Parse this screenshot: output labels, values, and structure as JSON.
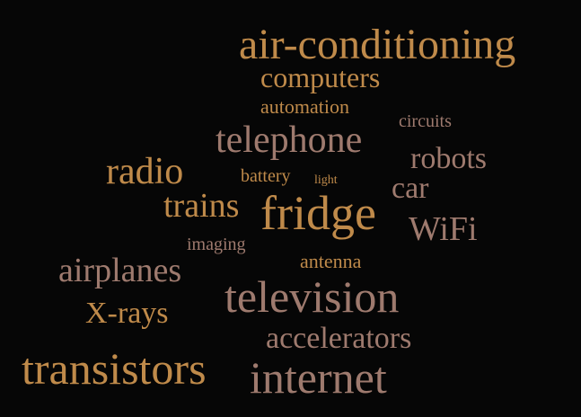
{
  "cloud": {
    "words": [
      {
        "text": "air-conditioning",
        "color": "#bf8a4a"
      },
      {
        "text": "computers",
        "color": "#bf8a4a"
      },
      {
        "text": "automation",
        "color": "#bf8a4a"
      },
      {
        "text": "circuits",
        "color": "#9e7a6e"
      },
      {
        "text": "telephone",
        "color": "#9e7a6e"
      },
      {
        "text": "robots",
        "color": "#9e7a6e"
      },
      {
        "text": "radio",
        "color": "#bf8a4a"
      },
      {
        "text": "battery",
        "color": "#bf8a4a"
      },
      {
        "text": "light",
        "color": "#bf8a4a"
      },
      {
        "text": "car",
        "color": "#9e7a6e"
      },
      {
        "text": "trains",
        "color": "#bf8a4a"
      },
      {
        "text": "fridge",
        "color": "#bf8a4a"
      },
      {
        "text": "WiFi",
        "color": "#9e7a6e"
      },
      {
        "text": "imaging",
        "color": "#9e7a6e"
      },
      {
        "text": "antenna",
        "color": "#bf8a4a"
      },
      {
        "text": "airplanes",
        "color": "#9e7a6e"
      },
      {
        "text": "television",
        "color": "#9e7a6e"
      },
      {
        "text": "X-rays",
        "color": "#bf8a4a"
      },
      {
        "text": "accelerators",
        "color": "#9e7a6e"
      },
      {
        "text": "transistors",
        "color": "#bf8a4a"
      },
      {
        "text": "internet",
        "color": "#9e7a6e"
      }
    ]
  }
}
